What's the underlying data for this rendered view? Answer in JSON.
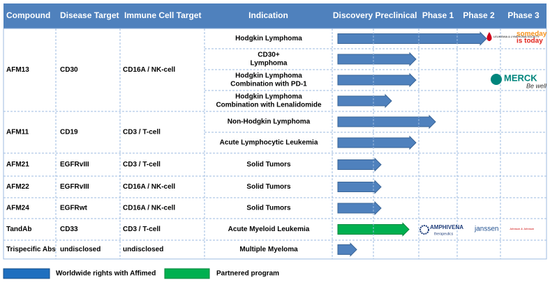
{
  "header": [
    "Compound",
    "Disease Target",
    "Immune Cell Target",
    "Indication",
    "Discovery",
    "Preclinical",
    "Phase 1",
    "Phase 2",
    "Phase 3"
  ],
  "rows": [
    {
      "compound": "AFM13",
      "disease": "CD30",
      "immune": "CD16A / NK-cell",
      "indications": [
        [
          "Hodgkin Lymphoma"
        ],
        [
          "CD30+",
          "Lymphoma"
        ],
        [
          "Hodgkin Lymphoma",
          "Combination with PD-1"
        ],
        [
          "Hodgkin Lymphoma",
          "Combination with Lenalidomide"
        ]
      ]
    },
    {
      "compound": "AFM11",
      "disease": "CD19",
      "immune": "CD3 / T-cell",
      "indications": [
        [
          "Non-Hodgkin Lymphoma"
        ],
        [
          "Acute Lymphocytic Leukemia"
        ]
      ]
    },
    {
      "compound": "AFM21",
      "disease": "EGFRvIII",
      "immune": "CD3 / T-cell",
      "indications": [
        [
          "Solid Tumors"
        ]
      ]
    },
    {
      "compound": "AFM22",
      "disease": "EGFRvIII",
      "immune": "CD16A / NK-cell",
      "indications": [
        [
          "Solid Tumors"
        ]
      ]
    },
    {
      "compound": "AFM24",
      "disease": "EGFRwt",
      "immune": "CD16A / NK-cell",
      "indications": [
        [
          "Solid Tumors"
        ]
      ]
    },
    {
      "compound": "TandAb",
      "disease": "CD33",
      "immune": "CD3 / T-cell",
      "indications": [
        [
          "Acute Myeloid Leukemia"
        ]
      ]
    },
    {
      "compound": "Trispecific Abs",
      "disease": "undisclosed",
      "immune": "undisclosed",
      "indications": [
        [
          "Multiple Myeloma"
        ]
      ]
    }
  ],
  "partners": {
    "lls": "LEUKEMIA & LYMPHOMA SOCIETY",
    "lls_slogan": [
      "someday",
      "is today"
    ],
    "merck": "MERCK",
    "merck_slogan": "Be well",
    "amphivena": "AMPHIVENA",
    "amphivena_sub": "therapeutics",
    "janssen": "janssen",
    "jnj": "Johnson & Johnson"
  },
  "legend": [
    "Worldwide rights with Affimed",
    "Partnered program"
  ]
}
